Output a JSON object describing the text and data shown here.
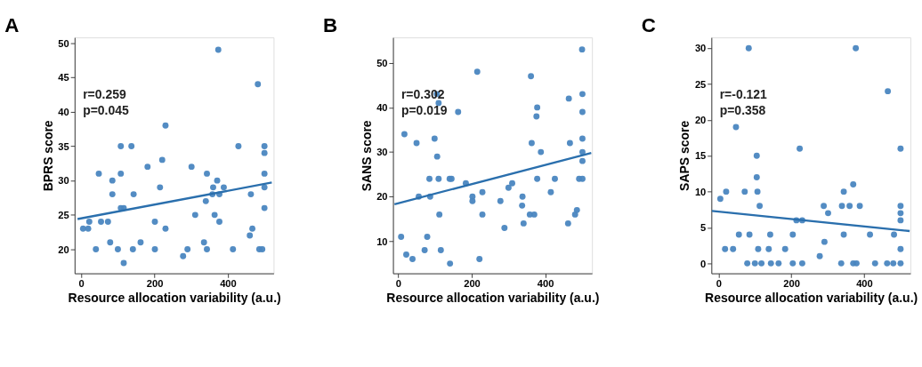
{
  "chart_data": [
    {
      "type": "scatter",
      "title": "A",
      "xlabel": "Resource allocation variability (a.u.)",
      "ylabel": "BPRS score",
      "xlim": [
        -18,
        525
      ],
      "ylim": [
        16.5,
        50.8
      ],
      "xticks": [
        0,
        200,
        400
      ],
      "yticks": [
        20,
        25,
        30,
        35,
        40,
        45,
        50
      ],
      "grid": false,
      "annotations": [
        "r=0.259",
        "p=0.045"
      ],
      "series": [
        {
          "type": "scatter",
          "marker": "circle",
          "color": "#4a86c0",
          "x": [
            374,
            482,
            230,
            108,
            137,
            429,
            500,
            500,
            221,
            181,
            301,
            48,
            108,
            343,
            500,
            85,
            371,
            215,
            360,
            389,
            500,
            85,
            143,
            358,
            377,
            463,
            340,
            108,
            116,
            500,
            311,
            364,
            22,
            54,
            73,
            201,
            377,
            5,
            19,
            230,
            467,
            460,
            79,
            162,
            335,
            40,
            100,
            141,
            201,
            290,
            343,
            414,
            486,
            494,
            278,
            116
          ],
          "values": [
            49,
            44,
            38,
            35,
            35,
            35,
            35,
            34,
            33,
            32,
            32,
            31,
            31,
            31,
            31,
            30,
            30,
            29,
            29,
            29,
            29,
            28,
            28,
            28,
            28,
            28,
            27,
            26,
            26,
            26,
            25,
            25,
            24,
            24,
            24,
            24,
            24,
            23,
            23,
            23,
            23,
            22,
            21,
            21,
            21,
            20,
            20,
            20,
            20,
            20,
            20,
            20,
            20,
            20,
            19,
            18
          ]
        },
        {
          "type": "line",
          "line_style": "solid",
          "color": "#2a6fad",
          "x": [
            -10,
            520
          ],
          "values": [
            24.4,
            29.7
          ]
        }
      ]
    },
    {
      "type": "scatter",
      "title": "B",
      "xlabel": "Resource allocation variability (a.u.)",
      "ylabel": "SANS score",
      "xlim": [
        -14,
        527
      ],
      "ylim": [
        2.8,
        55.7
      ],
      "xticks": [
        0,
        200,
        400
      ],
      "yticks": [
        10,
        20,
        30,
        40,
        50
      ],
      "grid": false,
      "annotations": [
        "r=0.302",
        "p=0.019"
      ],
      "series": [
        {
          "type": "scatter",
          "marker": "circle",
          "color": "#4a86c0",
          "x": [
            500,
            215,
            361,
            105,
            501,
            464,
            110,
            378,
            163,
            501,
            376,
            17,
            99,
            501,
            50,
            363,
            467,
            106,
            388,
            501,
            501,
            85,
            110,
            140,
            145,
            378,
            426,
            492,
            501,
            184,
            310,
            300,
            229,
            415,
            56,
            87,
            202,
            338,
            202,
            278,
            337,
            112,
            229,
            358,
            370,
            481,
            486,
            341,
            462,
            289,
            8,
            79,
            72,
            116,
            22,
            39,
            221,
            141
          ],
          "values": [
            53,
            48,
            47,
            43,
            43,
            42,
            41,
            40,
            39,
            39,
            38,
            34,
            33,
            33,
            32,
            32,
            32,
            29,
            30,
            30,
            28,
            24,
            24,
            24,
            24,
            24,
            24,
            24,
            24,
            23,
            23,
            22,
            21,
            21,
            20,
            20,
            20,
            20,
            19,
            19,
            18,
            16,
            16,
            16,
            16,
            16,
            17,
            14,
            14,
            13,
            11,
            11,
            8,
            8,
            7,
            6,
            6,
            5
          ]
        },
        {
          "type": "line",
          "line_style": "solid",
          "color": "#2a6fad",
          "x": [
            -10,
            525
          ],
          "values": [
            18.3,
            29.8
          ]
        }
      ]
    },
    {
      "type": "scatter",
      "title": "C",
      "xlabel": "Resource allocation variability (a.u.)",
      "ylabel": "SAPS score",
      "xlim": [
        -19.5,
        527
      ],
      "ylim": [
        -1.4,
        31.5
      ],
      "xticks": [
        0,
        200,
        400
      ],
      "yticks": [
        0,
        5,
        10,
        15,
        20,
        25,
        30
      ],
      "grid": false,
      "annotations": [
        "r=-0.121",
        "p=0.358"
      ],
      "series": [
        {
          "type": "scatter",
          "marker": "circle",
          "color": "#4a86c0",
          "x": [
            83,
            377,
            465,
            48,
            223,
            500,
            105,
            105,
            370,
            5,
            21,
            72,
            107,
            344,
            113,
            289,
            339,
            360,
            388,
            500,
            500,
            301,
            214,
            230,
            500,
            56,
            85,
            142,
            204,
            344,
            416,
            482,
            291,
            18,
            40,
            109,
            138,
            183,
            500,
            278,
            79,
            100,
            118,
            144,
            165,
            204,
            230,
            337,
            370,
            379,
            430,
            463,
            480,
            500
          ],
          "values": [
            30,
            30,
            24,
            19,
            16,
            16,
            15,
            12,
            11,
            9,
            10,
            10,
            10,
            10,
            8,
            8,
            8,
            8,
            8,
            8,
            7,
            7,
            6,
            6,
            6,
            4,
            4,
            4,
            4,
            4,
            4,
            4,
            3,
            2,
            2,
            2,
            2,
            2,
            2,
            1,
            0,
            0,
            0,
            0,
            0,
            0,
            0,
            0,
            0,
            0,
            0,
            0,
            0,
            0
          ]
        },
        {
          "type": "line",
          "line_style": "solid",
          "color": "#2a6fad",
          "x": [
            -18,
            525
          ],
          "values": [
            7.3,
            4.5
          ]
        }
      ]
    }
  ]
}
